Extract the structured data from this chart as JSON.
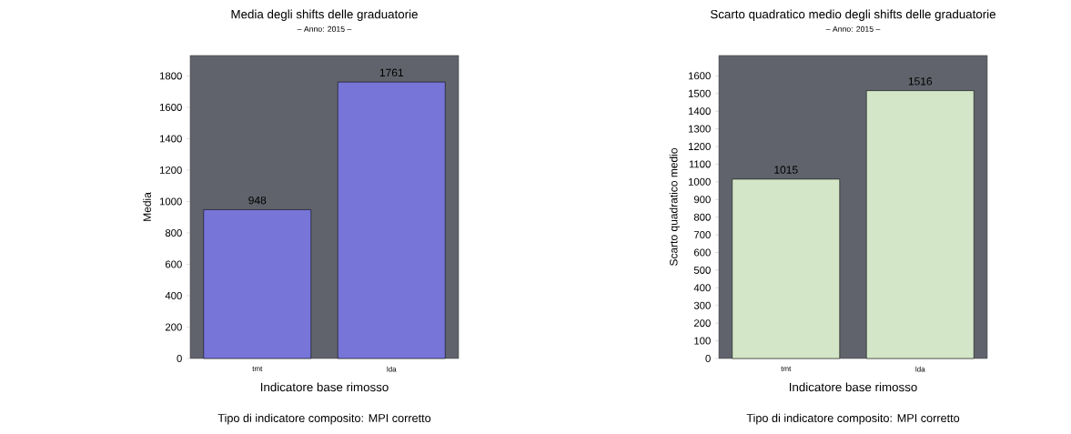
{
  "chart_data": [
    {
      "type": "bar",
      "title": "Media degli shifts delle graduatorie",
      "subtitle": "– Anno: 2015 –",
      "xlabel": "Indicatore base rimosso",
      "ylabel": "Media",
      "categories": [
        "tmt",
        "lda"
      ],
      "values": [
        948,
        1761
      ],
      "color": "#7775d8",
      "ylim": [
        0,
        1930
      ],
      "yticks": [
        0,
        200,
        400,
        600,
        800,
        1000,
        1200,
        1400,
        1600,
        1800
      ],
      "data_labels": true,
      "annotations": [
        "Tipo di indicatore composito: MPI corretto"
      ]
    },
    {
      "type": "bar",
      "title": "Scarto quadratico medio degli shifts delle graduatorie",
      "subtitle": "– Anno: 2015 –",
      "xlabel": "Indicatore base rimosso",
      "ylabel": "Scarto quadratico medio",
      "categories": [
        "tmt",
        "lda"
      ],
      "values": [
        1015,
        1516
      ],
      "color": "#d3e6c7",
      "ylim": [
        0,
        1715
      ],
      "yticks": [
        0,
        100,
        200,
        300,
        400,
        500,
        600,
        700,
        800,
        900,
        1000,
        1100,
        1200,
        1300,
        1400,
        1500,
        1600
      ],
      "data_labels": true,
      "annotations": [
        "Tipo di indicatore composito: MPI corretto"
      ]
    }
  ]
}
